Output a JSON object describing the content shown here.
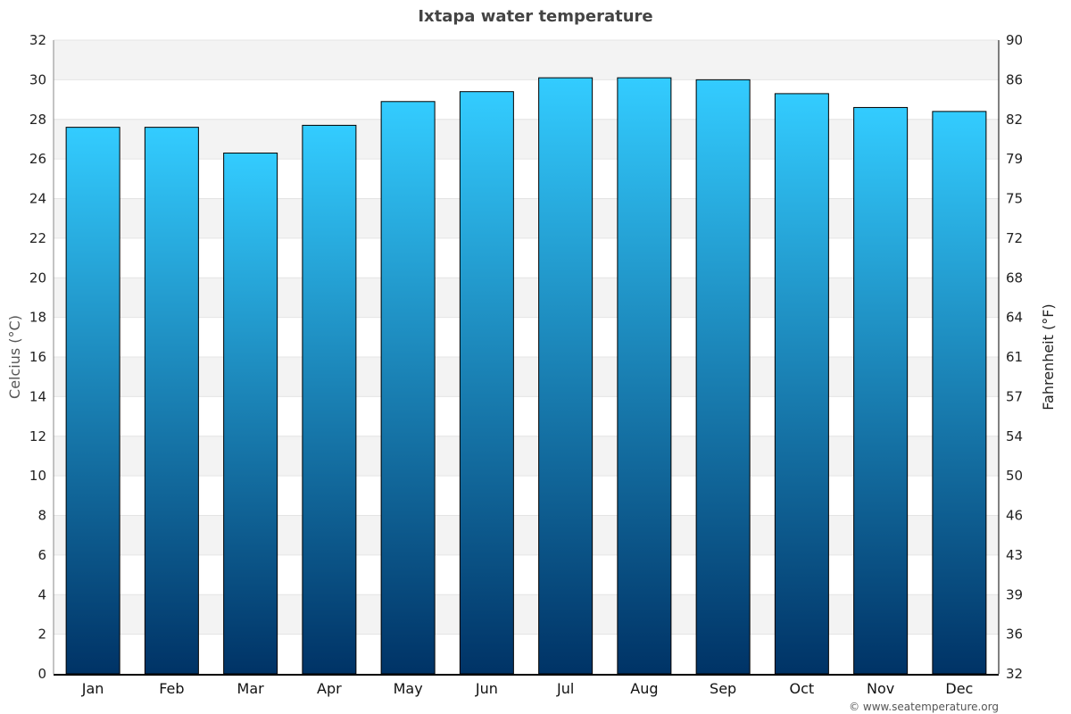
{
  "chart_data": {
    "type": "bar",
    "title": "Ixtapa water temperature",
    "ylabel": "Celcius (°C)",
    "y2label": "Fahrenheit (°F)",
    "categories": [
      "Jan",
      "Feb",
      "Mar",
      "Apr",
      "May",
      "Jun",
      "Jul",
      "Aug",
      "Sep",
      "Oct",
      "Nov",
      "Dec"
    ],
    "values": [
      27.6,
      27.6,
      26.3,
      27.7,
      28.9,
      29.4,
      30.1,
      30.1,
      30.0,
      29.3,
      28.6,
      28.4
    ],
    "ylim": [
      0,
      32
    ],
    "yticks": [
      "0",
      "2",
      "4",
      "6",
      "8",
      "10",
      "12",
      "14",
      "16",
      "18",
      "20",
      "22",
      "24",
      "26",
      "28",
      "30",
      "32"
    ],
    "y2ticks": [
      "32",
      "36",
      "39",
      "43",
      "46",
      "50",
      "54",
      "57",
      "61",
      "64",
      "68",
      "72",
      "75",
      "79",
      "82",
      "86",
      "90"
    ],
    "grid": true,
    "bar_color_top": "#33ccff",
    "bar_color_bottom": "#003366",
    "band_color": "#f3f3f3",
    "credit": "© www.seatemperature.org"
  }
}
